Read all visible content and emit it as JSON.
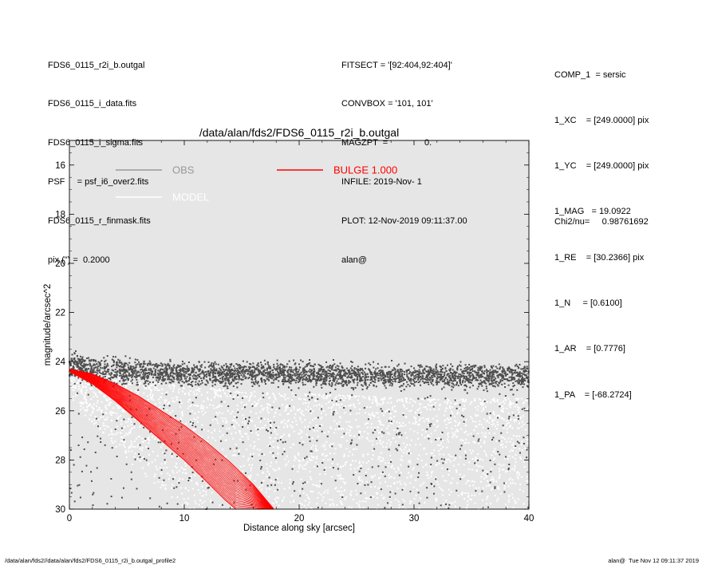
{
  "header_left": [
    "FDS6_0115_r2i_b.outgal",
    "FDS6_0115_i_data.fits",
    "FDS6_0115_i_sigma.fits",
    "PSF     = psf_i6_over2.fits",
    "FDS6_0115_r_finmask.fits",
    "pix (\") =  0.2000"
  ],
  "header_mid": [
    "FITSECT = '[92:404,92:404]'",
    "CONVBOX = '101, 101'",
    "MAGZPT  =               0.",
    "INFILE: 2019-Nov- 1",
    "PLOT: 12-Nov-2019 09:11:37.00",
    "alan@"
  ],
  "header_right": [
    "COMP_1  = sersic",
    "1_XC    = [249.0000] pix",
    "1_YC    = [249.0000] pix",
    "1_MAG   = 19.0922",
    "1_RE    = [30.2366] pix",
    "1_N     = [0.6100]",
    "1_AR    = [0.7776]",
    "1_PA    = [-68.2724]"
  ],
  "chi2": "Chi2/nu=     0.98761692",
  "footer_left": "/data/alan/fds2//data/alan/fds2/FDS6_0115_r2i_b.outgal_profile2",
  "footer_right": "alan@  Tue Nov 12 09:11:37 2019",
  "chart_data": {
    "type": "scatter",
    "title": "/data/alan/fds2/FDS6_0115_r2i_b.outgal",
    "xlabel": "Distance along sky [arcsec]",
    "ylabel": "magnitude/arcsec^2",
    "xlim": [
      0,
      40
    ],
    "ylim": [
      30,
      15.0
    ],
    "y_inverted": true,
    "xticks": [
      0,
      10,
      20,
      30,
      40
    ],
    "yticks": [
      16,
      18,
      20,
      22,
      24,
      26,
      28,
      30
    ],
    "grid": false,
    "legend_placement": "top-left",
    "colors": {
      "plot_bg": "#e6e6e6",
      "obs": "#4d4d4d",
      "model": "#ffffff",
      "bulge": "#ff0000",
      "obs_legend": "#999999"
    },
    "legend": [
      {
        "label": "OBS",
        "color": "#999999"
      },
      {
        "label": "MODEL",
        "color": "#ffffff"
      },
      {
        "label": "BULGE  1.000",
        "color": "#ff0000"
      }
    ],
    "series": [
      {
        "name": "OBS",
        "kind": "scatter_band",
        "color": "#4d4d4d",
        "description_points": "dense observed pixel band",
        "x": [
          0,
          2,
          5,
          10,
          15,
          20,
          25,
          30,
          35,
          40
        ],
        "y_center": [
          24.2,
          24.3,
          24.4,
          24.5,
          24.5,
          24.5,
          24.6,
          24.6,
          24.6,
          24.6
        ],
        "y_spread": [
          0.4,
          0.4,
          0.4,
          0.35,
          0.35,
          0.35,
          0.35,
          0.35,
          0.35,
          0.35
        ],
        "x_sparse_below": true
      },
      {
        "name": "MODEL",
        "kind": "scatter_band",
        "color": "#ffffff",
        "x": [
          0,
          2,
          5,
          10,
          15,
          20,
          25,
          30,
          35,
          40
        ],
        "y_low": [
          24.2,
          24.4,
          24.7,
          25.0,
          25.2,
          25.3,
          25.4,
          25.5,
          25.5,
          25.5
        ],
        "y_high": [
          25.5,
          26.5,
          28.0,
          30,
          30,
          30,
          30,
          30,
          30,
          30
        ]
      },
      {
        "name": "BULGE  1.000",
        "kind": "band",
        "color": "#ff0000",
        "x": [
          0,
          2,
          4,
          6,
          8,
          10,
          12,
          14,
          16,
          17.8
        ],
        "y_upper": [
          24.3,
          24.5,
          24.9,
          25.4,
          26.0,
          26.6,
          27.3,
          28.1,
          29.0,
          30.0
        ],
        "x_lower": [
          0,
          2,
          4,
          6,
          8,
          10,
          12,
          13.5,
          14.5
        ],
        "y_lower": [
          24.4,
          24.9,
          25.6,
          26.4,
          27.2,
          28.0,
          28.9,
          29.6,
          30.0
        ]
      }
    ]
  }
}
